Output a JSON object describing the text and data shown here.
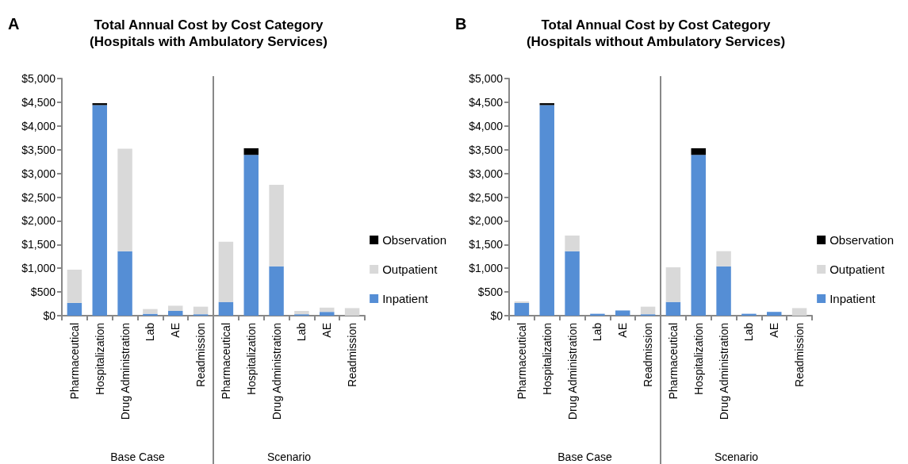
{
  "chart_data": [
    {
      "type": "bar",
      "title": "Total Annual Cost by Cost Category\n(Hospitals with Ambulatory Services)",
      "annotations": [
        "A",
        "Base Case",
        "Scenario"
      ],
      "categories": [
        "Pharmaceutical",
        "Hospitalization",
        "Drug Administration",
        "Lab",
        "AE",
        "Readmission",
        "Pharmaceutical",
        "Hospitalization",
        "Drug Administration",
        "Lab",
        "AE",
        "Readmission"
      ],
      "stacked": true,
      "legend": "right",
      "grid": false,
      "series": [
        {
          "name": "Inpatient",
          "color": "#558ed5",
          "values": [
            270,
            4440,
            1360,
            40,
            100,
            30,
            290,
            3390,
            1040,
            30,
            80,
            0
          ]
        },
        {
          "name": "Outpatient",
          "color": "#d9d9d9",
          "values": [
            700,
            0,
            2160,
            100,
            110,
            160,
            1270,
            0,
            1720,
            70,
            90,
            160
          ]
        },
        {
          "name": "Observation",
          "color": "#000000",
          "values": [
            0,
            40,
            0,
            0,
            0,
            0,
            0,
            140,
            0,
            0,
            0,
            0
          ]
        }
      ],
      "ylim": [
        0,
        5000
      ],
      "yticks": [
        {
          "value": 0,
          "label": "$0"
        },
        {
          "value": 500,
          "label": "$500"
        },
        {
          "value": 1000,
          "label": "$1,000"
        },
        {
          "value": 1500,
          "label": "$1,500"
        },
        {
          "value": 2000,
          "label": "$2,000"
        },
        {
          "value": 2500,
          "label": "$2,500"
        },
        {
          "value": 3000,
          "label": "$3,000"
        },
        {
          "value": 3500,
          "label": "$3,500"
        },
        {
          "value": 4000,
          "label": "$4,000"
        },
        {
          "value": 4500,
          "label": "$4,500"
        },
        {
          "value": 5000,
          "label": "$5,000"
        }
      ]
    },
    {
      "type": "bar",
      "title": "Total Annual Cost by Cost Category\n(Hospitals without Ambulatory Services)",
      "annotations": [
        "B",
        "Base Case",
        "Scenario"
      ],
      "categories": [
        "Pharmaceutical",
        "Hospitalization",
        "Drug Administration",
        "Lab",
        "AE",
        "Readmission",
        "Pharmaceutical",
        "Hospitalization",
        "Drug Administration",
        "Lab",
        "AE",
        "Readmission"
      ],
      "stacked": true,
      "legend": "right",
      "grid": false,
      "series": [
        {
          "name": "Inpatient",
          "color": "#558ed5",
          "values": [
            270,
            4440,
            1360,
            40,
            110,
            30,
            290,
            3390,
            1040,
            40,
            80,
            0
          ]
        },
        {
          "name": "Outpatient",
          "color": "#d9d9d9",
          "values": [
            30,
            0,
            330,
            0,
            0,
            160,
            730,
            0,
            320,
            0,
            0,
            160
          ]
        },
        {
          "name": "Observation",
          "color": "#000000",
          "values": [
            0,
            40,
            0,
            0,
            0,
            0,
            0,
            140,
            0,
            0,
            0,
            0
          ]
        }
      ],
      "ylim": [
        0,
        5000
      ],
      "yticks": [
        {
          "value": 0,
          "label": "$0"
        },
        {
          "value": 500,
          "label": "$500"
        },
        {
          "value": 1000,
          "label": "$1,000"
        },
        {
          "value": 1500,
          "label": "$1,500"
        },
        {
          "value": 2000,
          "label": "$2,000"
        },
        {
          "value": 2500,
          "label": "$2,500"
        },
        {
          "value": 3000,
          "label": "$3,000"
        },
        {
          "value": 3500,
          "label": "$3,500"
        },
        {
          "value": 4000,
          "label": "$4,000"
        },
        {
          "value": 4500,
          "label": "$4,500"
        },
        {
          "value": 5000,
          "label": "$5,000"
        }
      ]
    }
  ]
}
